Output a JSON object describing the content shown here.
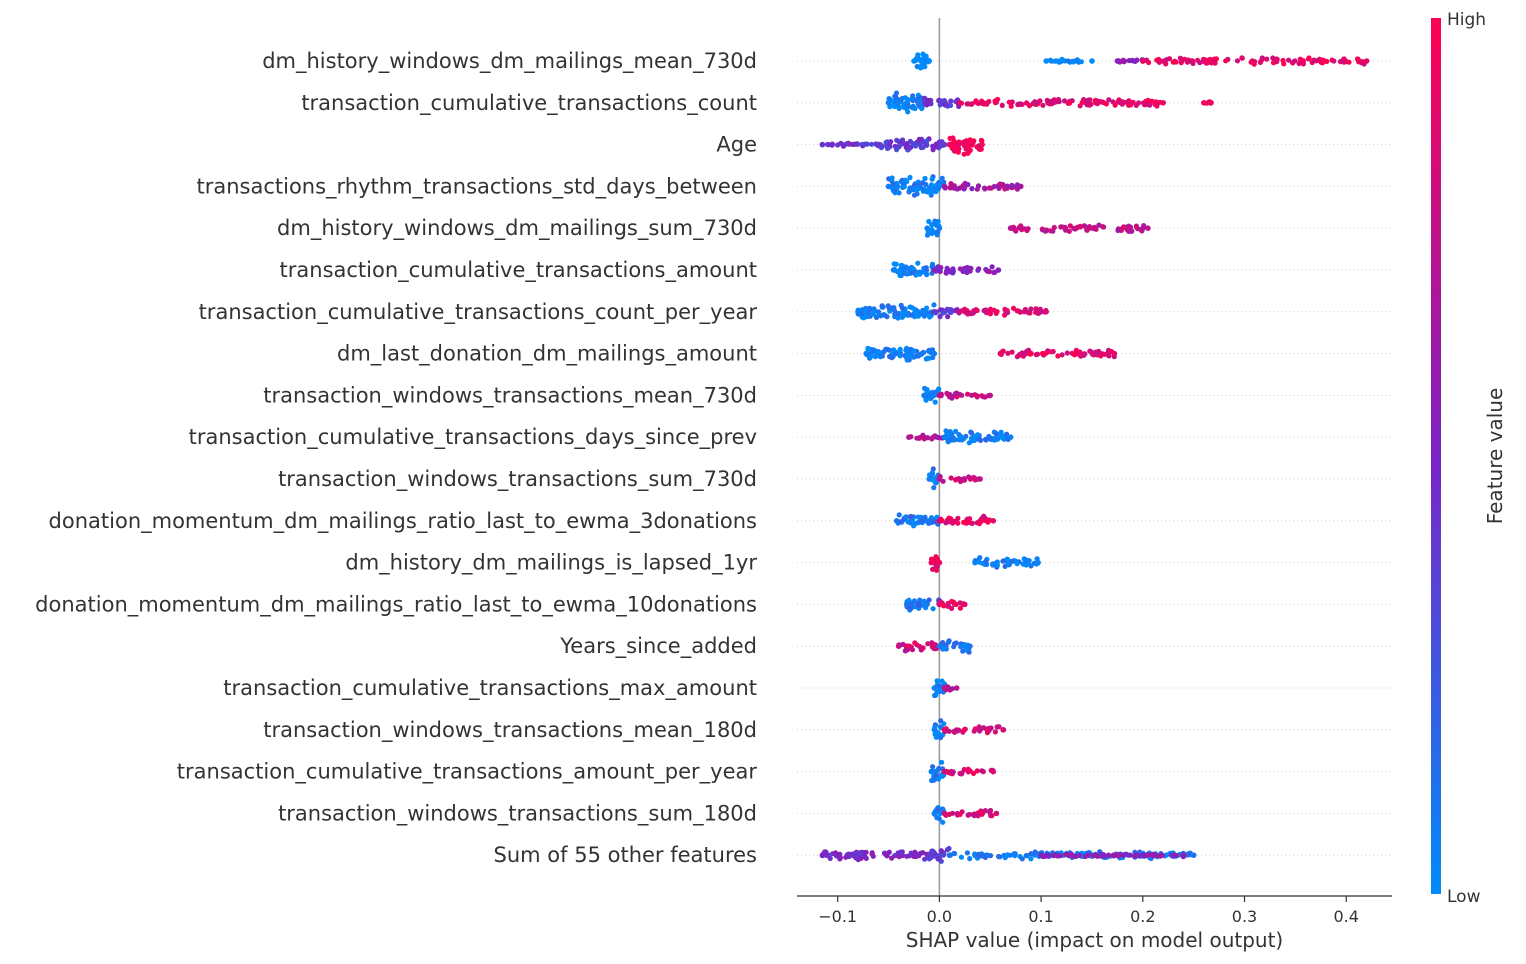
{
  "chart_data": {
    "type": "scatter",
    "subtype": "beeswarm",
    "title": "",
    "xlabel": "SHAP value (impact on model output)",
    "ylabel": "",
    "xlim": [
      -0.14,
      0.445
    ],
    "xticks": [
      -0.1,
      0.0,
      0.1,
      0.2,
      0.3,
      0.4
    ],
    "xtick_labels": [
      "−0.1",
      "0.0",
      "0.1",
      "0.2",
      "0.3",
      "0.4"
    ],
    "grid": false,
    "zero_line": true,
    "colorbar": {
      "title": "Feature value",
      "high_label": "High",
      "low_label": "Low",
      "high_color": "#ff0051",
      "mid_color": "#7c24c5",
      "low_color": "#008bfb"
    },
    "features": [
      {
        "name": "dm_history_windows_dm_mailings_mean_730d",
        "segments": [
          [
            -0.025,
            -0.01,
            0.0,
            4
          ],
          [
            0.105,
            0.15,
            0.0,
            0.8
          ],
          [
            0.175,
            0.2,
            0.55,
            0.8
          ],
          [
            0.2,
            0.42,
            0.9,
            1.3
          ]
        ]
      },
      {
        "name": "transaction_cumulative_transactions_count",
        "segments": [
          [
            -0.05,
            -0.015,
            0.05,
            4
          ],
          [
            -0.015,
            0.02,
            0.4,
            2
          ],
          [
            0.02,
            0.22,
            0.9,
            1.5
          ],
          [
            0.26,
            0.267,
            0.95,
            0.5
          ]
        ]
      },
      {
        "name": "Age",
        "segments": [
          [
            -0.115,
            -0.06,
            0.45,
            0.8
          ],
          [
            -0.06,
            0.005,
            0.4,
            2.5
          ],
          [
            0.01,
            0.042,
            0.95,
            4
          ]
        ]
      },
      {
        "name": "transactions_rhythm_transactions_std_days_between",
        "segments": [
          [
            -0.05,
            0.005,
            0.05,
            4
          ],
          [
            0.005,
            0.08,
            0.65,
            1.5
          ]
        ]
      },
      {
        "name": "dm_history_windows_dm_mailings_sum_730d",
        "segments": [
          [
            -0.012,
            0.0,
            0.05,
            4
          ],
          [
            0.07,
            0.205,
            0.75,
            1.5
          ]
        ]
      },
      {
        "name": "transaction_cumulative_transactions_amount",
        "segments": [
          [
            -0.045,
            -0.005,
            0.05,
            3
          ],
          [
            -0.005,
            0.058,
            0.55,
            1.5
          ]
        ]
      },
      {
        "name": "transaction_cumulative_transactions_count_per_year",
        "segments": [
          [
            -0.08,
            -0.005,
            0.05,
            3
          ],
          [
            -0.005,
            0.02,
            0.4,
            2
          ],
          [
            0.02,
            0.105,
            0.85,
            1.5
          ]
        ]
      },
      {
        "name": "dm_last_donation_dm_mailings_amount",
        "segments": [
          [
            -0.072,
            -0.005,
            0.05,
            3
          ],
          [
            0.06,
            0.172,
            0.9,
            1.5
          ]
        ]
      },
      {
        "name": "transaction_windows_transactions_mean_730d",
        "segments": [
          [
            -0.015,
            0.0,
            0.05,
            4
          ],
          [
            0.0,
            0.05,
            0.75,
            1.2
          ]
        ]
      },
      {
        "name": "transaction_cumulative_transactions_days_since_prev",
        "segments": [
          [
            -0.03,
            0.005,
            0.7,
            1.3
          ],
          [
            0.005,
            0.07,
            0.05,
            2.5
          ]
        ]
      },
      {
        "name": "transaction_windows_transactions_sum_730d",
        "segments": [
          [
            -0.01,
            0.0,
            0.05,
            4
          ],
          [
            0.0,
            0.04,
            0.75,
            1.2
          ]
        ]
      },
      {
        "name": "donation_momentum_dm_mailings_ratio_last_to_ewma_3donations",
        "segments": [
          [
            -0.042,
            0.0,
            0.1,
            2.5
          ],
          [
            0.0,
            0.053,
            0.9,
            2
          ]
        ]
      },
      {
        "name": "dm_history_dm_mailings_is_lapsed_1yr",
        "segments": [
          [
            -0.008,
            0.0,
            0.95,
            4
          ],
          [
            0.035,
            0.097,
            0.05,
            2
          ]
        ]
      },
      {
        "name": "donation_momentum_dm_mailings_ratio_last_to_ewma_10donations",
        "segments": [
          [
            -0.032,
            0.0,
            0.1,
            2.5
          ],
          [
            0.0,
            0.025,
            0.9,
            2
          ]
        ]
      },
      {
        "name": "Years_since_added",
        "segments": [
          [
            -0.04,
            0.0,
            0.8,
            2
          ],
          [
            0.0,
            0.03,
            0.1,
            2.5
          ]
        ]
      },
      {
        "name": "transaction_cumulative_transactions_max_amount",
        "segments": [
          [
            -0.005,
            0.005,
            0.05,
            4
          ],
          [
            0.005,
            0.017,
            0.75,
            1.2
          ]
        ]
      },
      {
        "name": "transaction_windows_transactions_mean_180d",
        "segments": [
          [
            -0.005,
            0.005,
            0.05,
            4
          ],
          [
            0.005,
            0.063,
            0.85,
            1.3
          ]
        ]
      },
      {
        "name": "transaction_cumulative_transactions_amount_per_year",
        "segments": [
          [
            -0.008,
            0.005,
            0.05,
            4
          ],
          [
            0.005,
            0.053,
            0.85,
            1.2
          ]
        ]
      },
      {
        "name": "transaction_windows_transactions_sum_180d",
        "segments": [
          [
            -0.005,
            0.005,
            0.05,
            4
          ],
          [
            0.005,
            0.056,
            0.85,
            1.3
          ]
        ]
      },
      {
        "name": "Sum of 55 other features",
        "segments": [
          [
            -0.115,
            -0.01,
            0.5,
            1.8
          ],
          [
            -0.01,
            0.01,
            0.4,
            3.5
          ],
          [
            0.01,
            0.25,
            0.1,
            1.5
          ],
          [
            0.1,
            0.24,
            0.55,
            0.6
          ]
        ]
      }
    ]
  }
}
